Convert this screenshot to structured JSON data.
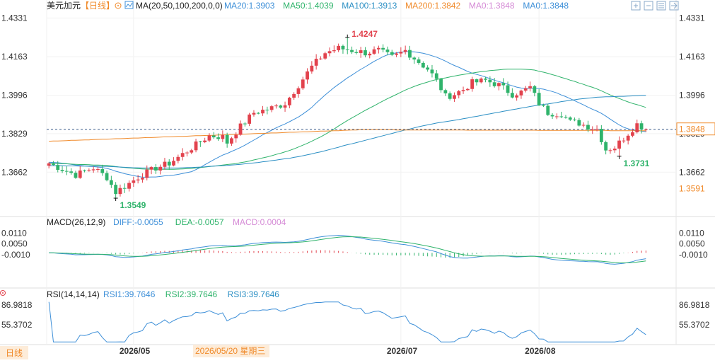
{
  "header": {
    "symbol": "美元加元",
    "period_tag": "【日线】",
    "ma_label": "MA(20,50,100,200,0,0)",
    "ma_items": [
      {
        "text": "MA20:1.3903",
        "color": "#3d8fd8"
      },
      {
        "text": "MA50:1.4039",
        "color": "#2fb36b"
      },
      {
        "text": "MA100:1.3913",
        "color": "#2b8fc4"
      },
      {
        "text": "MA200:1.3842",
        "color": "#f08a2a"
      },
      {
        "text": "MA0:1.3848",
        "color": "#d58bd6"
      },
      {
        "text": "MA0:1.3848",
        "color": "#3d8fd8"
      }
    ],
    "toolbar_icons": [
      "expand-icon",
      "shrink-icon",
      "fullscreen-icon",
      "menu-icon"
    ]
  },
  "colors": {
    "up": "#e2424d",
    "down": "#2fb36b",
    "price_tag": "#f08a2a",
    "grid": "#ececec",
    "axis_text": "#333333"
  },
  "chart_data": [
    {
      "type": "candlestick",
      "title": "美元加元【日线】",
      "ylim": [
        1.35,
        1.436
      ],
      "y_ticks": [
        "1.4331",
        "1.4163",
        "1.3996",
        "1.3829",
        "1.3662"
      ],
      "y_tick_values": [
        1.4331,
        1.4163,
        1.3996,
        1.3829,
        1.3662
      ],
      "price_tags": [
        {
          "text": "1.3848",
          "value": 1.3848,
          "style": "box"
        },
        {
          "text": "1.3591",
          "value": 1.3591,
          "style": "plain"
        }
      ],
      "annotations": [
        {
          "text": "1.4247",
          "bar": 67,
          "value": 1.4247,
          "kind": "high",
          "color": "#e2424d"
        },
        {
          "text": "1.3549",
          "bar": 15,
          "value": 1.3549,
          "kind": "low",
          "color": "#2fb36b"
        },
        {
          "text": "1.3731",
          "bar": 128,
          "value": 1.3731,
          "kind": "low",
          "color": "#2fb36b"
        }
      ],
      "x_labels": [
        {
          "text": "2026/05",
          "bar": 19
        },
        {
          "text": "2026/07",
          "bar": 79
        },
        {
          "text": "2026/08",
          "bar": 110
        }
      ],
      "cursor_label": "2026/05/20 星期三",
      "cursor_bar": 33,
      "last_price": 1.3848,
      "candles": [],
      "ma_lines": [
        {
          "name": "MA20",
          "color": "#3d8fd8",
          "values": []
        },
        {
          "name": "MA50",
          "color": "#2fb36b",
          "values": []
        },
        {
          "name": "MA100",
          "color": "#2b8fc4",
          "values": []
        },
        {
          "name": "MA200",
          "color": "#f08a2a",
          "values": []
        }
      ]
    },
    {
      "type": "macd",
      "title": "MACD(26,12,9)",
      "legend": [
        {
          "text": "DIFF:-0.0055",
          "color": "#3d8fd8"
        },
        {
          "text": "DEA:-0.0057",
          "color": "#2fb36b"
        },
        {
          "text": "MACD:0.0004",
          "color": "#d58bd6"
        }
      ],
      "ylim": [
        -0.0185,
        0.014
      ],
      "y_ticks": [
        "0.0110",
        "0.0050",
        "-0.0010"
      ],
      "y_tick_values": [
        0.011,
        0.005,
        -0.001
      ],
      "diff": [],
      "dea": [],
      "hist": []
    },
    {
      "type": "rsi",
      "title": "RSI(14,14,14)",
      "legend": [
        {
          "text": "RSI1:39.7646",
          "color": "#3d8fd8"
        },
        {
          "text": "RSI2:39.7646",
          "color": "#2fb36b"
        },
        {
          "text": "RSI3:39.7646",
          "color": "#2b8fc4"
        }
      ],
      "ylim": [
        25,
        95
      ],
      "y_ticks": [
        "86.9818",
        "55.3702"
      ],
      "y_tick_values": [
        86.9818,
        55.3702
      ],
      "values": []
    }
  ],
  "footer": {
    "period_button": "日线"
  }
}
